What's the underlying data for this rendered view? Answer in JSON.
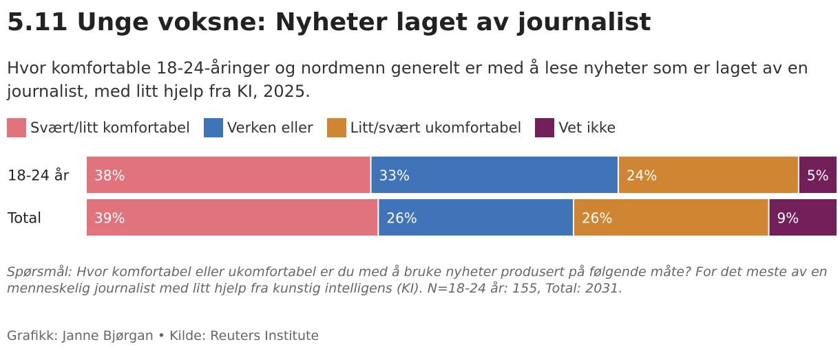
{
  "title": "5.11 Unge voksne: Nyheter laget av journalist",
  "subtitle": "Hvor komfortable 18-24-åringer og nordmenn generelt er med å lese nyheter som er laget av en journalist, med litt hjelp fra KI, 2025.",
  "footnote": "Spørsmål: Hvor komfortabel eller ukomfortabel er du med å bruke nyheter produsert på følgende måte? For det meste av en menneskelig journalist med litt hjelp fra kunstig intelligens (KI). N=18-24 år: 155, Total: 2031.",
  "credit": "Grafikk: Janne Bjørgan • Kilde: Reuters Institute",
  "chart_data": {
    "type": "bar",
    "orientation": "horizontal",
    "stacked": true,
    "categories": [
      "18-24 år",
      "Total"
    ],
    "series": [
      {
        "name": "Svært/litt komfortabel",
        "values": [
          38,
          39
        ],
        "labels": [
          "38%",
          "39%"
        ],
        "color": "#e0737c"
      },
      {
        "name": "Verken eller",
        "values": [
          33,
          26
        ],
        "labels": [
          "33%",
          "26%"
        ],
        "color": "#3f74b8"
      },
      {
        "name": "Litt/svært ukomfortabel",
        "values": [
          24,
          26
        ],
        "labels": [
          "24%",
          "26%"
        ],
        "color": "#cf8531"
      },
      {
        "name": "Vet ikke",
        "values": [
          5,
          9
        ],
        "labels": [
          "5%",
          "9%"
        ],
        "color": "#731f59"
      }
    ],
    "xlim": [
      0,
      100
    ],
    "grid": false,
    "legend": "top-left"
  }
}
